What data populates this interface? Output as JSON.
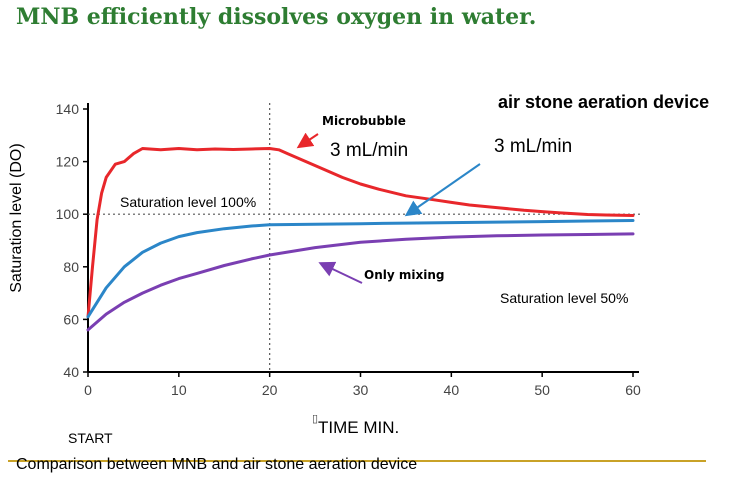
{
  "page": {
    "title": "MNB efficiently dissolves oxygen in water.",
    "caption": "Comparison between MNB and air stone aeration device"
  },
  "chart_data": {
    "type": "line",
    "xlabel": "TIME MIN.",
    "ylabel": "Saturation level (DO)",
    "xlim": [
      0,
      60
    ],
    "ylim": [
      40,
      140
    ],
    "x_ticks": [
      "0",
      "10",
      "20",
      "30",
      "40",
      "50",
      "60"
    ],
    "y_ticks": [
      "40",
      "60",
      "80",
      "100",
      "120",
      "140"
    ],
    "reference_line": {
      "y": 100,
      "style": "dotted"
    },
    "vertical_marker": {
      "x": 20,
      "style": "dotted"
    },
    "series": [
      {
        "name": "Microbubble",
        "color": "#e8272b",
        "x": [
          0,
          0.5,
          1,
          1.5,
          2,
          3,
          4,
          5,
          6,
          8,
          10,
          12,
          14,
          16,
          18,
          20,
          21,
          22,
          24,
          26,
          28,
          30,
          32,
          35,
          38,
          40,
          42,
          45,
          48,
          50,
          52,
          55,
          57,
          60
        ],
        "y": [
          61,
          80,
          98,
          108,
          114,
          119,
          120,
          123,
          125,
          124.5,
          125,
          124.5,
          124.8,
          124.6,
          124.8,
          125,
          124.5,
          123,
          120,
          117,
          114,
          111.5,
          109.5,
          107,
          105.5,
          104.5,
          103.5,
          102.5,
          101.5,
          101,
          100.5,
          99.9,
          99.7,
          99.5
        ]
      },
      {
        "name": "air stone aeration device",
        "color": "#2b86c8",
        "x": [
          0,
          2,
          4,
          6,
          8,
          10,
          12,
          15,
          18,
          20,
          25,
          30,
          35,
          40,
          45,
          50,
          55,
          60
        ],
        "y": [
          61,
          72,
          80,
          85.5,
          89,
          91.5,
          93,
          94.5,
          95.5,
          96,
          96.2,
          96.4,
          96.6,
          96.8,
          97,
          97.2,
          97.4,
          97.6
        ]
      },
      {
        "name": "Only mixing",
        "color": "#7a3fb2",
        "x": [
          0,
          2,
          4,
          6,
          8,
          10,
          12,
          15,
          18,
          20,
          25,
          30,
          35,
          40,
          45,
          50,
          55,
          60
        ],
        "y": [
          56,
          62,
          66.5,
          70,
          73,
          75.5,
          77.5,
          80.5,
          83,
          84.5,
          87.3,
          89.3,
          90.5,
          91.3,
          91.8,
          92.1,
          92.3,
          92.5
        ]
      }
    ],
    "annotations": {
      "saturation_100": "Saturation level 100%",
      "saturation_50": "Saturation level 50%",
      "air_stone": "air stone aeration device",
      "microbubble": "Microbubble",
      "flow_mnb": "3 mL/min",
      "flow_air": "3 mL/min",
      "only_mixing": "Only mixing",
      "start": "START"
    },
    "grid": false
  }
}
